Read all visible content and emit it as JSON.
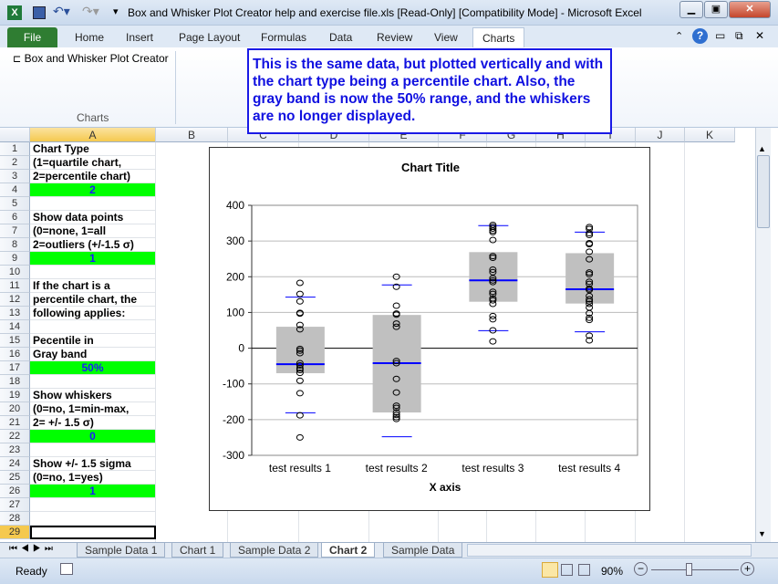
{
  "window": {
    "title": "Box and Whisker Plot Creator help and exercise file.xls  [Read-Only]  [Compatibility Mode]  -  Microsoft Excel"
  },
  "ribbon": {
    "tabs": [
      "File",
      "Home",
      "Insert",
      "Page Layout",
      "Formulas",
      "Data",
      "Review",
      "View",
      "Charts"
    ],
    "active_tab": "Charts",
    "button": "Box and Whisker Plot Creator",
    "group": "Charts"
  },
  "note": "This is the same data, but plotted vertically and with the chart type being a percentile chart.  Also, the gray band is now the 50% range, and the whiskers are no longer displayed.",
  "columns": [
    "A",
    "B",
    "C",
    "D",
    "E",
    "F",
    "G",
    "H",
    "I",
    "J",
    "K"
  ],
  "cells": {
    "1": "Chart Type",
    "2": "(1=quartile chart,",
    "3": "2=percentile chart)",
    "4": "2",
    "6": "Show data points",
    "7": "(0=none, 1=all",
    "8": "2=outliers (+/-1.5 σ)",
    "9": "1",
    "11": "If the chart is a",
    "12": "percentile chart, the",
    "13": "following applies:",
    "15": "Pecentile in",
    "16": "Gray band",
    "17": "50%",
    "19": "Show whiskers",
    "20": "(0=no, 1=min-max,",
    "21": "2= +/- 1.5 σ)",
    "22": "0",
    "24": "Show +/- 1.5 sigma",
    "25": "(0=no, 1=yes)",
    "26": "1"
  },
  "green_rows": [
    4,
    9,
    17,
    22,
    26
  ],
  "selected_cell": "A29",
  "colors": {
    "input_fill": "#00ff00",
    "input_text": "#1a1aff",
    "box": "#c0c0c0",
    "median": "#0000ff"
  },
  "chart_data": {
    "type": "box",
    "title": "Chart Title",
    "xlabel": "X axis",
    "ylabel": "",
    "ylim": [
      -300,
      400
    ],
    "yticks": [
      400,
      300,
      200,
      100,
      0,
      -100,
      -200,
      -300
    ],
    "grid": true,
    "categories": [
      "test results 1",
      "test results 2",
      "test results 3",
      "test results 4"
    ],
    "series": [
      {
        "name": "test results 1",
        "box_low": -70,
        "box_high": 60,
        "median": -45,
        "sigma_low": -181,
        "sigma_high": 143,
        "points": [
          183,
          152,
          131,
          99,
          97,
          65,
          53,
          -2,
          -7,
          -14,
          -42,
          -48,
          -56,
          -61,
          -69,
          -91,
          -126,
          -188,
          -250
        ]
      },
      {
        "name": "test results 2",
        "box_low": -180,
        "box_high": 93,
        "median": -42,
        "sigma_low": -248,
        "sigma_high": 177,
        "points": [
          200,
          172,
          119,
          97,
          94,
          69,
          60,
          -36,
          -42,
          -86,
          -124,
          -161,
          -167,
          -180,
          -187,
          -193,
          -198
        ]
      },
      {
        "name": "test results 3",
        "box_low": 130,
        "box_high": 269,
        "median": 190,
        "sigma_low": 49,
        "sigma_high": 343,
        "points": [
          345,
          340,
          335,
          329,
          325,
          303,
          258,
          253,
          220,
          213,
          196,
          190,
          185,
          158,
          152,
          139,
          134,
          124,
          90,
          81,
          50,
          19
        ]
      },
      {
        "name": "test results 4",
        "box_low": 125,
        "box_high": 266,
        "median": 165,
        "sigma_low": 46,
        "sigma_high": 325,
        "points": [
          339,
          334,
          322,
          317,
          294,
          291,
          270,
          249,
          212,
          207,
          186,
          180,
          167,
          163,
          146,
          137,
          131,
          124,
          114,
          98,
          85,
          79,
          35,
          22
        ]
      }
    ]
  },
  "sheets": [
    "Sample Data 1",
    "Chart 1",
    "Sample Data 2",
    "Chart 2",
    "Sample Data"
  ],
  "active_sheet": "Chart 2",
  "status": {
    "mode": "Ready",
    "zoom": "90%"
  }
}
